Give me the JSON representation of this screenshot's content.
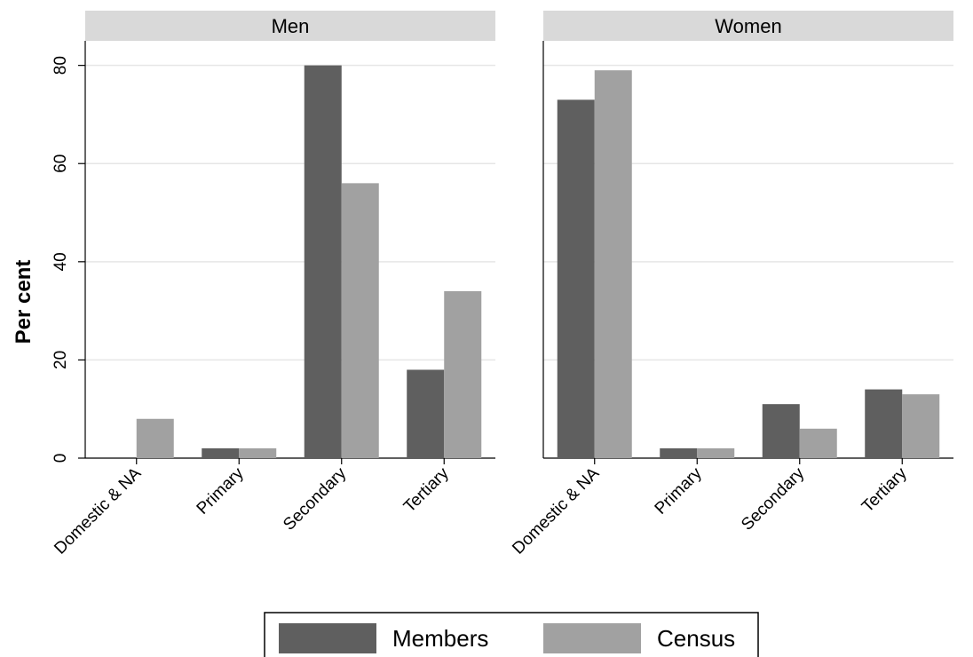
{
  "chart_data": {
    "type": "bar",
    "ylabel": "Per cent",
    "ylim": [
      0,
      85
    ],
    "yticks": [
      0,
      20,
      40,
      60,
      80
    ],
    "grid": true,
    "legend_position": "bottom",
    "categories": [
      "Domestic & NA",
      "Primary",
      "Secondary",
      "Tertiary"
    ],
    "series_names": [
      "Members",
      "Census"
    ],
    "colors": {
      "Members": "#5f5f5f",
      "Census": "#a1a1a1",
      "panel_header": "#d9d9d9",
      "grid": "#e6e6e6"
    },
    "panels": [
      {
        "title": "Men",
        "series": [
          {
            "name": "Members",
            "values": [
              0,
              2,
              80,
              18
            ]
          },
          {
            "name": "Census",
            "values": [
              8,
              2,
              56,
              34
            ]
          }
        ]
      },
      {
        "title": "Women",
        "series": [
          {
            "name": "Members",
            "values": [
              73,
              2,
              11,
              14
            ]
          },
          {
            "name": "Census",
            "values": [
              79,
              2,
              6,
              13
            ]
          }
        ]
      }
    ]
  }
}
